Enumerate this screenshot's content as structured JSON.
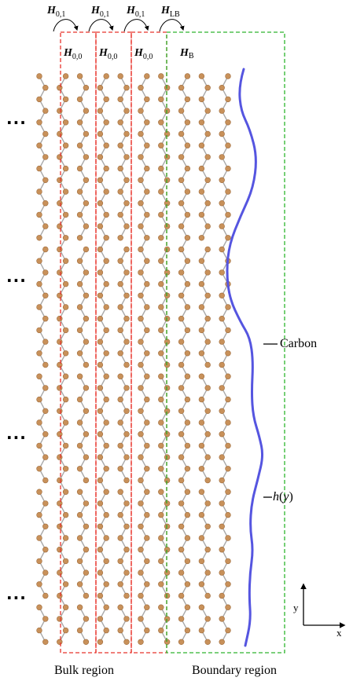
{
  "header": {
    "hopping_labels": [
      {
        "sym": "H",
        "sub": "0,1"
      },
      {
        "sym": "H",
        "sub": "0,1"
      },
      {
        "sym": "H",
        "sub": "0,1"
      },
      {
        "sym": "H",
        "sub": "LB"
      }
    ],
    "cell_labels": [
      {
        "sym": "H",
        "sub": "0,0"
      },
      {
        "sym": "H",
        "sub": "0,0"
      },
      {
        "sym": "H",
        "sub": "0,0"
      },
      {
        "sym": "H",
        "sub": "B"
      }
    ]
  },
  "annotations": {
    "carbon": "Carbon",
    "hy_h": "h",
    "hy_y": "y",
    "ellipsis": "..."
  },
  "axes": {
    "y": "y",
    "x": "x"
  },
  "regions": {
    "bulk": "Bulk region",
    "boundary": "Boundary region"
  },
  "colors": {
    "atom": "#c8915a",
    "bond": "#a8a8a8",
    "bulk_box": "#e8332b",
    "boundary_box": "#2db52d",
    "edge_curve": "#5555e0"
  }
}
